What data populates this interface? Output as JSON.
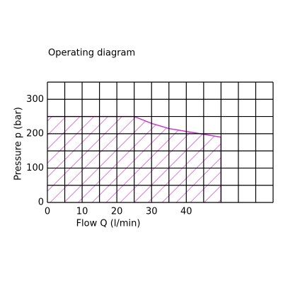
{
  "chart_data": {
    "type": "area",
    "title": "Operating diagram",
    "xlabel": "Flow Q (l/min)",
    "ylabel": "Pressure p (bar)",
    "x": [
      0,
      25,
      30,
      35,
      50,
      50
    ],
    "values": [
      250,
      250,
      230,
      215,
      190,
      0
    ],
    "color": "#cc33cc",
    "xlim": [
      0,
      65
    ],
    "ylim": [
      0,
      350
    ],
    "xticks": [
      0,
      10,
      20,
      30,
      40
    ],
    "yticks": [
      0,
      100,
      200,
      300
    ],
    "x_gridlines": [
      0,
      5,
      10,
      15,
      20,
      25,
      30,
      35,
      40,
      45,
      50,
      55,
      60,
      65
    ],
    "y_gridlines": [
      0,
      50,
      100,
      150,
      200,
      250,
      300,
      350
    ],
    "grid": true
  }
}
